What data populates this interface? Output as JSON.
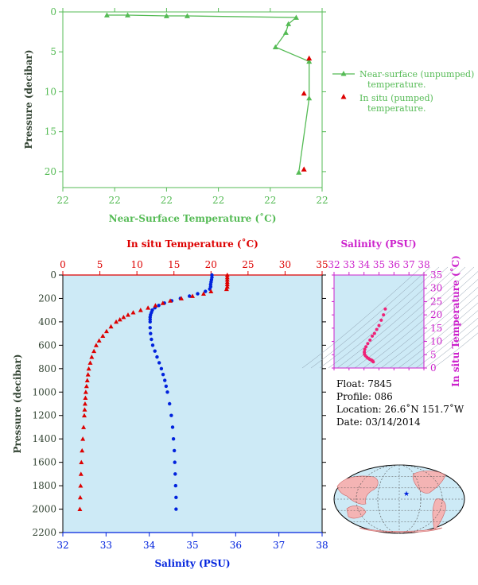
{
  "chart_data": [
    {
      "type": "scatter",
      "xlabel": "Near-Surface Temperature (˚C)",
      "ylabel": "Pressure (decibar)",
      "x_tick_labels": [
        "22",
        "22",
        "22",
        "22",
        "22",
        "22"
      ],
      "y_ticks": [
        0,
        5,
        10,
        15,
        20
      ],
      "ylim": [
        0,
        22
      ],
      "legend": [
        {
          "name": "Near-surface (unpumped)",
          "name2": "temperature."
        },
        {
          "name": "In situ (pumped)",
          "name2": "temperature."
        }
      ],
      "series": [
        {
          "name": "Near-surface (unpumped)",
          "color": "#55bb55",
          "points": [
            [
              0.17,
              0.4
            ],
            [
              0.25,
              0.4
            ],
            [
              0.4,
              0.5
            ],
            [
              0.48,
              0.5
            ],
            [
              0.9,
              0.7
            ],
            [
              0.87,
              1.5
            ],
            [
              0.86,
              2.6
            ],
            [
              0.82,
              4.4
            ],
            [
              0.95,
              6.2
            ],
            [
              0.95,
              10.8
            ],
            [
              0.91,
              20.1
            ]
          ]
        },
        {
          "name": "In situ (pumped)",
          "color": "#dd0000",
          "points": [
            [
              0.95,
              5.8
            ],
            [
              0.93,
              10.2
            ],
            [
              0.93,
              19.7
            ]
          ]
        }
      ]
    },
    {
      "type": "scatter",
      "top_xlabel": "In situ Temperature (˚C)",
      "bottom_xlabel": "Salinity (PSU)",
      "ylabel": "Pressure (decibar)",
      "temp_ticks": [
        0,
        5,
        10,
        15,
        20,
        25,
        30,
        35
      ],
      "sal_ticks": [
        32,
        33,
        34,
        35,
        36,
        37,
        38
      ],
      "pressure_ticks": [
        0,
        200,
        400,
        600,
        800,
        1000,
        1200,
        1400,
        1600,
        1800,
        2000,
        2200
      ],
      "temp_range": [
        0,
        35
      ],
      "sal_range": [
        32,
        38
      ],
      "pressure_range": [
        0,
        2200
      ],
      "series": [
        {
          "name": "temperature",
          "color": "#dd0000",
          "pressure": [
            0,
            20,
            40,
            60,
            80,
            100,
            120,
            140,
            160,
            180,
            200,
            220,
            240,
            260,
            280,
            300,
            320,
            340,
            360,
            380,
            400,
            440,
            480,
            520,
            560,
            600,
            650,
            700,
            750,
            800,
            850,
            900,
            950,
            1000,
            1050,
            1100,
            1150,
            1200,
            1300,
            1400,
            1500,
            1600,
            1700,
            1800,
            1900,
            2000
          ],
          "values": [
            22.2,
            22.2,
            22.2,
            22.2,
            22.2,
            22.2,
            22.1,
            20.0,
            19.0,
            17.5,
            16.0,
            14.5,
            13.5,
            12.5,
            11.5,
            10.5,
            9.5,
            8.8,
            8.2,
            7.7,
            7.2,
            6.5,
            5.9,
            5.4,
            4.9,
            4.5,
            4.2,
            3.9,
            3.7,
            3.5,
            3.4,
            3.3,
            3.2,
            3.1,
            3.05,
            3.0,
            2.95,
            2.9,
            2.8,
            2.7,
            2.6,
            2.5,
            2.45,
            2.4,
            2.35,
            2.3
          ]
        },
        {
          "name": "salinity",
          "color": "#0022dd",
          "pressure": [
            0,
            20,
            40,
            60,
            80,
            100,
            120,
            140,
            160,
            180,
            200,
            220,
            240,
            260,
            280,
            300,
            320,
            340,
            360,
            380,
            400,
            450,
            500,
            550,
            600,
            650,
            700,
            750,
            800,
            850,
            900,
            950,
            1000,
            1100,
            1200,
            1300,
            1400,
            1500,
            1600,
            1700,
            1800,
            1900,
            2000
          ],
          "values": [
            35.45,
            35.45,
            35.44,
            35.43,
            35.42,
            35.42,
            35.4,
            35.3,
            35.12,
            34.93,
            34.72,
            34.52,
            34.35,
            34.22,
            34.13,
            34.07,
            34.05,
            34.03,
            34.02,
            34.02,
            34.02,
            34.02,
            34.03,
            34.05,
            34.08,
            34.13,
            34.18,
            34.23,
            34.28,
            34.32,
            34.36,
            34.39,
            34.42,
            34.47,
            34.51,
            34.54,
            34.56,
            34.58,
            34.59,
            34.6,
            34.61,
            34.62,
            34.62
          ]
        }
      ]
    },
    {
      "type": "scatter",
      "title": "Salinity (PSU)",
      "ylabel": "In situ Temperature (˚C)",
      "x_ticks": [
        32,
        33,
        34,
        35,
        36,
        37,
        38
      ],
      "y_ticks": [
        0,
        5,
        10,
        15,
        20,
        25,
        30,
        35
      ],
      "xlim": [
        32,
        38
      ],
      "ylim": [
        0,
        35
      ],
      "series": [
        {
          "name": "ts",
          "color": "#ee2277",
          "points": [
            [
              35.42,
              22.2
            ],
            [
              35.3,
              20.0
            ],
            [
              35.15,
              18.0
            ],
            [
              35.0,
              16.0
            ],
            [
              34.85,
              14.5
            ],
            [
              34.7,
              13.0
            ],
            [
              34.55,
              12.0
            ],
            [
              34.4,
              10.5
            ],
            [
              34.25,
              9.2
            ],
            [
              34.13,
              8.0
            ],
            [
              34.05,
              7.0
            ],
            [
              34.02,
              6.0
            ],
            [
              34.03,
              5.2
            ],
            [
              34.1,
              4.6
            ],
            [
              34.2,
              4.0
            ],
            [
              34.3,
              3.6
            ],
            [
              34.38,
              3.3
            ],
            [
              34.45,
              3.1
            ],
            [
              34.52,
              2.9
            ],
            [
              34.58,
              2.6
            ],
            [
              34.62,
              2.3
            ]
          ]
        }
      ]
    }
  ],
  "float_info": {
    "float": "Float:  7845",
    "profile": "Profile:  086",
    "location": "Location:  26.6˚N  151.7˚W",
    "date": "Date:  03/14/2014"
  },
  "map": {
    "marker": "★"
  }
}
